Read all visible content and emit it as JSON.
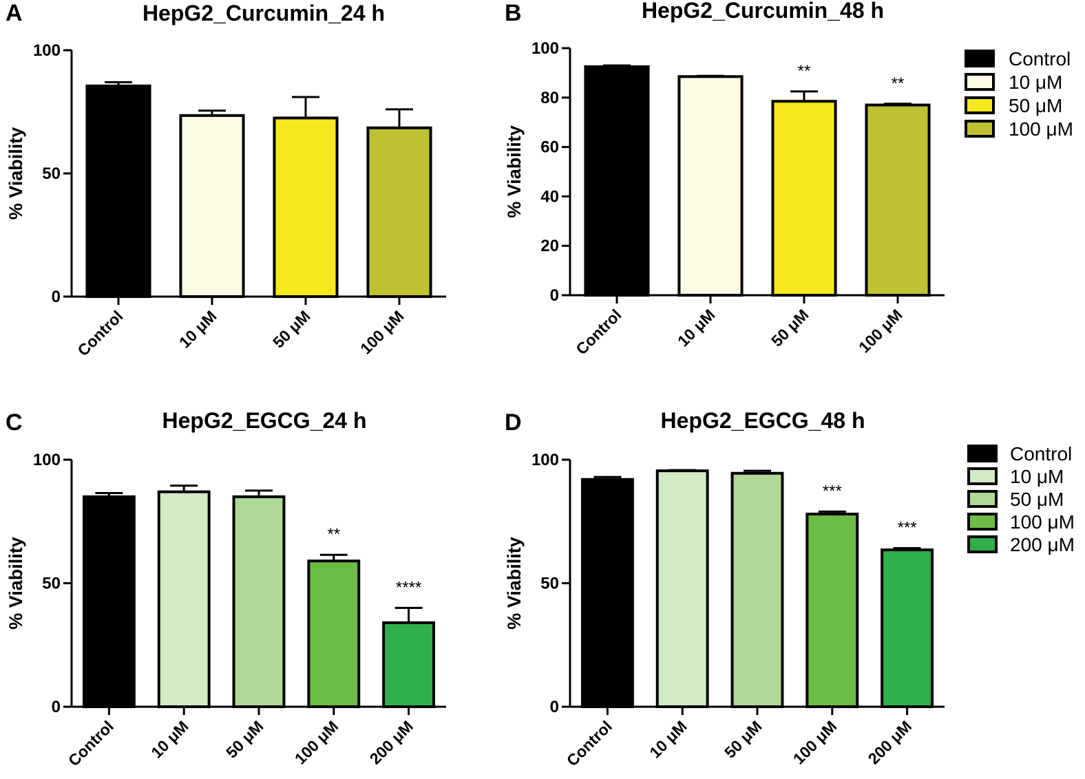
{
  "chart_data": [
    {
      "panel_label": "A",
      "type": "bar",
      "title": "HepG2_Curcumin_24 h",
      "ylabel": "% Viability",
      "xlabel": "",
      "categories": [
        "Control",
        "10 μM",
        "50 μM",
        "100 μM"
      ],
      "values": [
        85.5,
        73.5,
        72.5,
        68.5
      ],
      "errors": [
        1.5,
        2,
        8.5,
        7.5
      ],
      "significance": [
        "",
        "",
        "",
        ""
      ],
      "colors": [
        "#000000",
        "#fdfbe6",
        "#f7e81d",
        "#bec232"
      ],
      "ylim": [
        0,
        100
      ],
      "yticks": [
        0,
        50,
        100
      ],
      "grid": false,
      "legend": null
    },
    {
      "panel_label": "B",
      "type": "bar",
      "title": "HepG2_Curcumin_48 h",
      "ylabel": "% Viability",
      "xlabel": "",
      "categories": [
        "Control",
        "10 μM",
        "50 μM",
        "100 μM"
      ],
      "values": [
        92.5,
        88.5,
        78.5,
        77
      ],
      "errors": [
        0.5,
        0.3,
        4,
        0.5
      ],
      "significance": [
        "",
        "",
        "**",
        "**"
      ],
      "colors": [
        "#000000",
        "#fdfbe6",
        "#f7e81d",
        "#bec232"
      ],
      "ylim": [
        0,
        100
      ],
      "yticks": [
        0,
        20,
        40,
        60,
        80,
        100
      ],
      "grid": false,
      "legend": {
        "placement": "right",
        "entries": [
          "Control",
          "10 μM",
          "50 μM",
          "100 μM"
        ]
      }
    },
    {
      "panel_label": "C",
      "type": "bar",
      "title": "HepG2_EGCG_24 h",
      "ylabel": "% Viability",
      "xlabel": "",
      "categories": [
        "Control",
        "10 μM",
        "50 μM",
        "100 μM",
        "200 μM"
      ],
      "values": [
        85,
        87,
        85,
        59,
        34
      ],
      "errors": [
        1.5,
        2.5,
        2.5,
        2.5,
        6
      ],
      "significance": [
        "",
        "",
        "",
        "**",
        "****"
      ],
      "colors": [
        "#000000",
        "#d2e9c6",
        "#b0d897",
        "#6cbb45",
        "#2fb04c"
      ],
      "ylim": [
        0,
        100
      ],
      "yticks": [
        0,
        50,
        100
      ],
      "grid": false,
      "legend": null
    },
    {
      "panel_label": "D",
      "type": "bar",
      "title": "HepG2_EGCG_48 h",
      "ylabel": "% Viability",
      "xlabel": "",
      "categories": [
        "Control",
        "10 μM",
        "50 μM",
        "100 μM",
        "200 μM"
      ],
      "values": [
        92,
        95.5,
        94.5,
        78,
        63.5
      ],
      "errors": [
        1,
        0.3,
        1,
        1,
        0.7
      ],
      "significance": [
        "",
        "",
        "",
        "***",
        "***"
      ],
      "colors": [
        "#000000",
        "#d2e9c6",
        "#b0d897",
        "#6cbb45",
        "#2fb04c"
      ],
      "ylim": [
        0,
        100
      ],
      "yticks": [
        0,
        50,
        100
      ],
      "grid": false,
      "legend": {
        "placement": "right",
        "entries": [
          "Control",
          "10 μM",
          "50 μM",
          "100 μM",
          "200 μM"
        ]
      }
    }
  ]
}
